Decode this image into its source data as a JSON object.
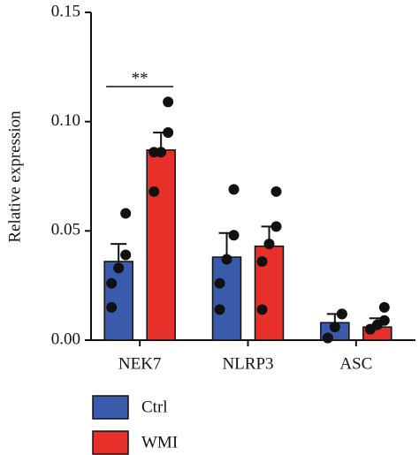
{
  "chart_data": {
    "type": "bar",
    "y_label": "Relative expression",
    "categories": [
      "NEK7",
      "NLRP3",
      "ASC"
    ],
    "series": [
      {
        "name": "Ctrl",
        "color": "#3a5bab",
        "values": [
          0.036,
          0.038,
          0.008
        ],
        "errors": [
          0.008,
          0.011,
          0.004
        ],
        "points": [
          [
            0.058,
            0.039,
            0.033,
            0.026,
            0.015
          ],
          [
            0.069,
            0.048,
            0.037,
            0.026,
            0.014
          ],
          [
            0.012,
            0.012,
            0.006,
            0.001,
            0.001
          ]
        ]
      },
      {
        "name": "WMI",
        "color": "#e8302a",
        "values": [
          0.087,
          0.043,
          0.006
        ],
        "errors": [
          0.008,
          0.009,
          0.004
        ],
        "points": [
          [
            0.109,
            0.095,
            0.086,
            0.086,
            0.068
          ],
          [
            0.068,
            0.052,
            0.044,
            0.036,
            0.014
          ],
          [
            0.015,
            0.009,
            0.007,
            0.005,
            0.005
          ]
        ]
      }
    ],
    "annotations": [
      {
        "text": "**"
      }
    ],
    "ylim": [
      0,
      0.15
    ],
    "yticks": [
      {
        "value": 0,
        "label": "0.00"
      },
      {
        "value": 0.05,
        "label": "0.05"
      },
      {
        "value": 0.1,
        "label": "0.10"
      },
      {
        "value": 0.15,
        "label": "0.15"
      }
    ]
  }
}
